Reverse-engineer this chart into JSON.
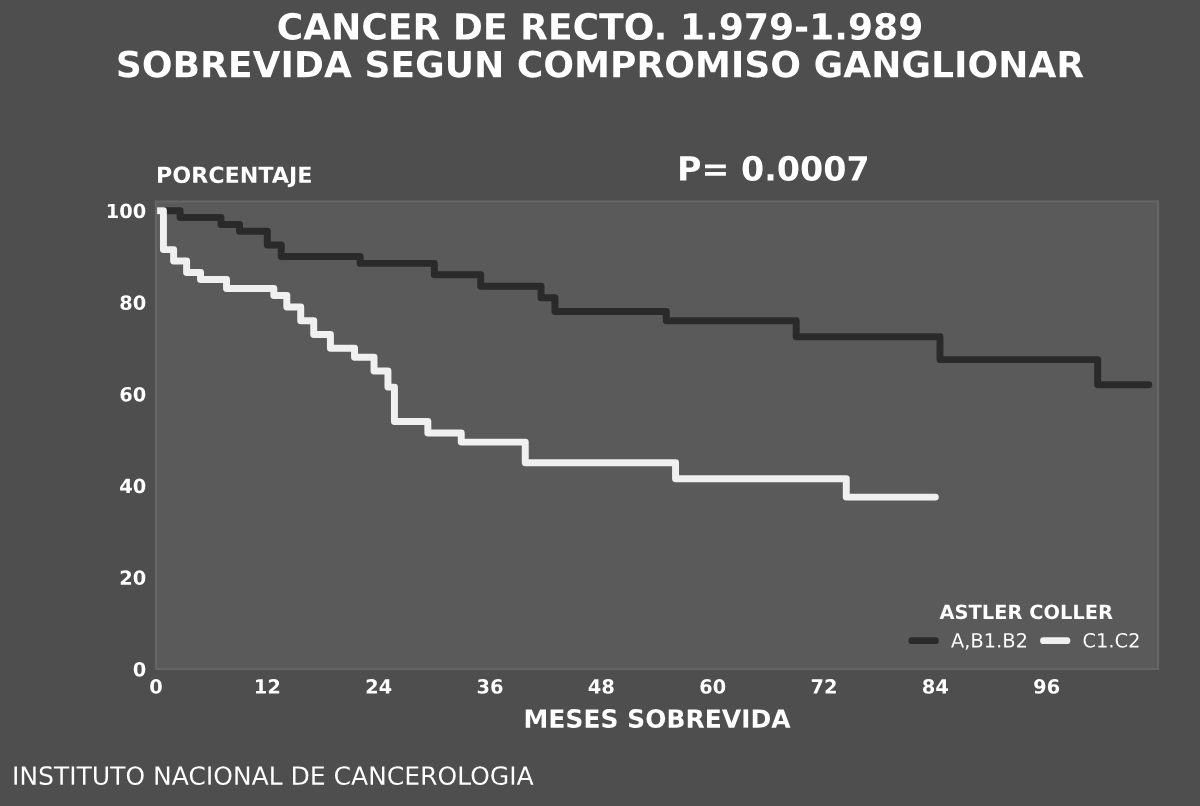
{
  "chart_data": {
    "type": "step",
    "title": "CANCER DE RECTO. 1.979-1.989\nSOBREVIDA SEGUN COMPROMISO GANGLIONAR",
    "ylabel": "PORCENTAJE",
    "xlabel": "MESES SOBREVIDA",
    "legend_title": "ASTLER COLLER",
    "annotations": [
      "P= 0.0007",
      "INSTITUTO NACIONAL DE CANCEROLOGIA"
    ],
    "series": [
      {
        "name": "A,B1.B2",
        "color": "#2a2a2a",
        "x": [
          0,
          2.6,
          7,
          9,
          12,
          13.5,
          22,
          30,
          35,
          41.5,
          43,
          55,
          69,
          84.5,
          101.5,
          107
        ],
        "values": [
          100,
          98.5,
          97,
          95.5,
          92.5,
          90,
          88.5,
          86,
          83.5,
          81,
          78,
          76,
          72.5,
          67.5,
          62,
          62
        ]
      },
      {
        "name": "C1.C2",
        "color": "#f0f0f0",
        "x": [
          0,
          0.8,
          1.9,
          3.3,
          4.8,
          7.6,
          12.7,
          14.1,
          15.6,
          17,
          18.8,
          21.4,
          23.5,
          25,
          25.7,
          29.3,
          32.9,
          39.8,
          56,
          74.4,
          84
        ],
        "values": [
          100,
          91.5,
          89,
          86.5,
          85,
          83,
          81.5,
          79,
          76,
          73,
          70,
          68,
          65,
          61.5,
          54,
          51.5,
          49.5,
          45,
          41.5,
          37.5,
          37.5
        ]
      }
    ],
    "xlim": [
      0,
      108
    ],
    "ylim": [
      0,
      102
    ],
    "xticks": [
      0,
      12,
      24,
      36,
      48,
      60,
      72,
      84,
      96
    ],
    "yticks": [
      0,
      20,
      40,
      60,
      80,
      100
    ],
    "grid": false,
    "legend": "bottom right",
    "line_style": "solid",
    "marker": "none"
  }
}
